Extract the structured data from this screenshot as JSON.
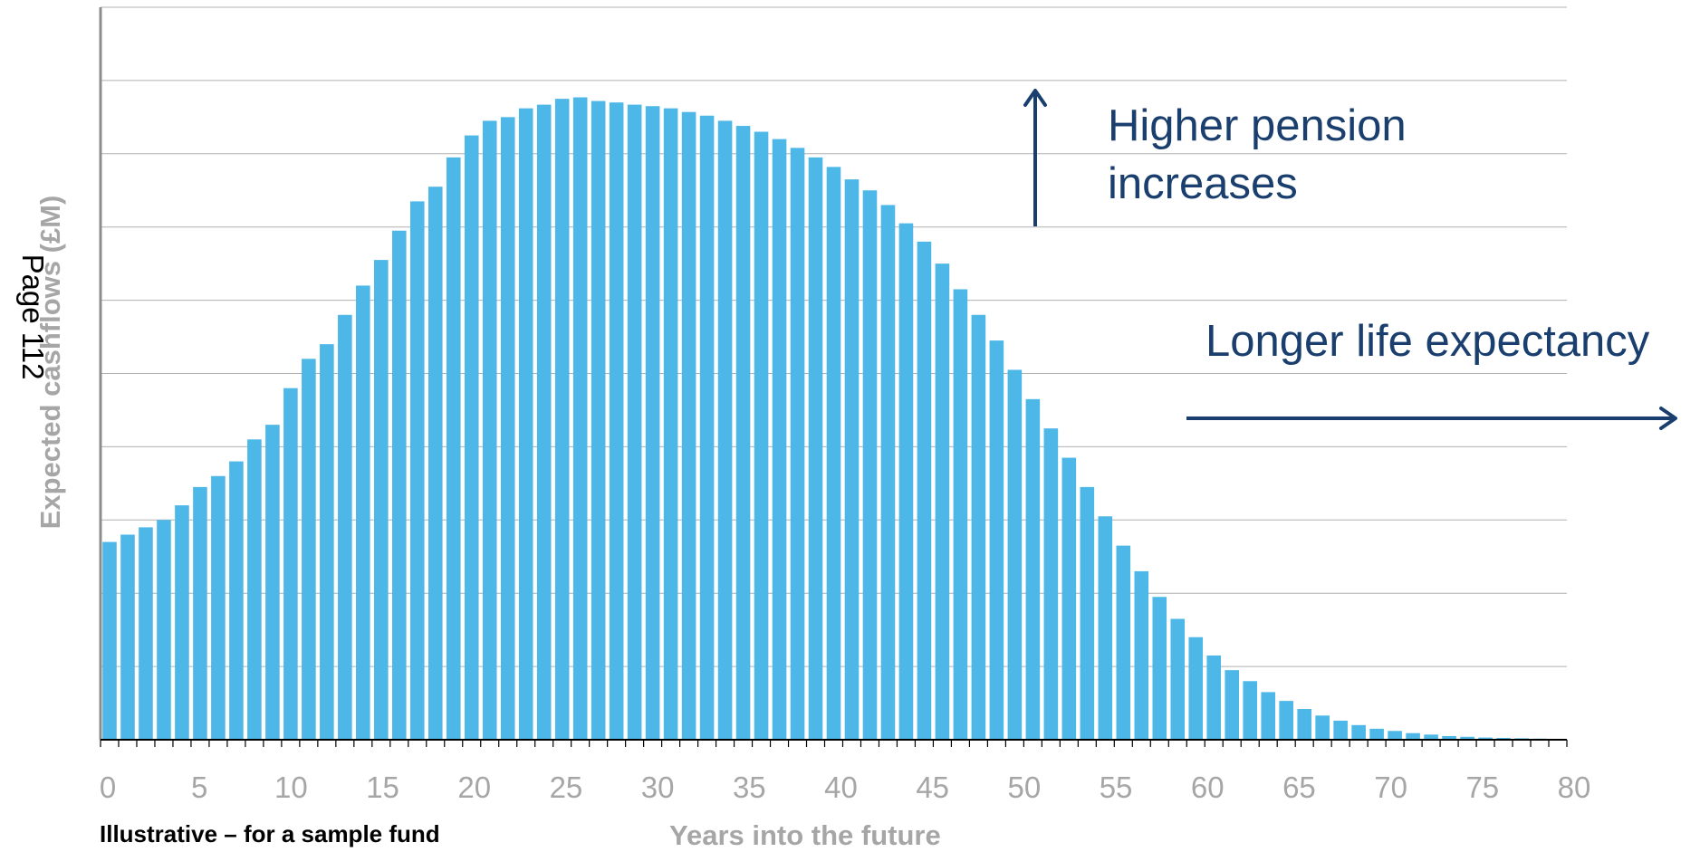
{
  "chart_data": {
    "type": "bar",
    "xlabel": "Years into the future",
    "ylabel": "Expected cashflows (£M)",
    "x_ticks": [
      0,
      5,
      10,
      15,
      20,
      25,
      30,
      35,
      40,
      45,
      50,
      55,
      60,
      65,
      70,
      75,
      80
    ],
    "xlim": [
      0,
      80
    ],
    "ylim": [
      0,
      10
    ],
    "y_ticks_labeled": false,
    "grid": true,
    "legend": "none",
    "bar_color": "#4db8e8",
    "categories": [
      0,
      1,
      2,
      3,
      4,
      5,
      6,
      7,
      8,
      9,
      10,
      11,
      12,
      13,
      14,
      15,
      16,
      17,
      18,
      19,
      20,
      21,
      22,
      23,
      24,
      25,
      26,
      27,
      28,
      29,
      30,
      31,
      32,
      33,
      34,
      35,
      36,
      37,
      38,
      39,
      40,
      41,
      42,
      43,
      44,
      45,
      46,
      47,
      48,
      49,
      50,
      51,
      52,
      53,
      54,
      55,
      56,
      57,
      58,
      59,
      60,
      61,
      62,
      63,
      64,
      65,
      66,
      67,
      68,
      69,
      70,
      71,
      72,
      73,
      74,
      75,
      76,
      77,
      78,
      79,
      80
    ],
    "values": [
      2.7,
      2.8,
      2.9,
      3.0,
      3.2,
      3.45,
      3.6,
      3.8,
      4.1,
      4.3,
      4.8,
      5.2,
      5.4,
      5.8,
      6.2,
      6.55,
      6.95,
      7.35,
      7.55,
      7.95,
      8.25,
      8.45,
      8.5,
      8.62,
      8.67,
      8.75,
      8.77,
      8.72,
      8.7,
      8.67,
      8.65,
      8.62,
      8.57,
      8.52,
      8.45,
      8.38,
      8.3,
      8.2,
      8.08,
      7.95,
      7.82,
      7.65,
      7.5,
      7.3,
      7.05,
      6.8,
      6.5,
      6.15,
      5.8,
      5.45,
      5.05,
      4.65,
      4.25,
      3.85,
      3.45,
      3.05,
      2.65,
      2.3,
      1.95,
      1.65,
      1.4,
      1.15,
      0.95,
      0.8,
      0.65,
      0.53,
      0.42,
      0.33,
      0.26,
      0.2,
      0.15,
      0.12,
      0.09,
      0.07,
      0.05,
      0.04,
      0.03,
      0.025,
      0.02,
      0.015,
      0.01
    ]
  },
  "annotations": {
    "pension": "Higher pension\nincreases",
    "life": "Longer life expectancy",
    "arrow_color": "#1a3f6e"
  },
  "footnote": "Illustrative – for a sample fund",
  "page_stamp": "Page 112"
}
